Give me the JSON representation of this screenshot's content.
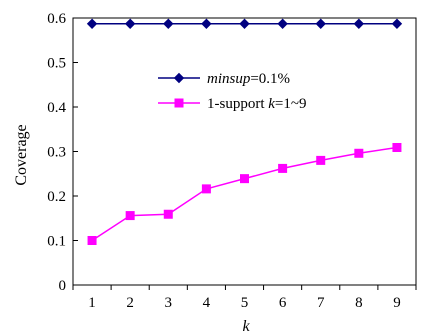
{
  "chart_data": {
    "type": "line",
    "title": "",
    "xlabel": "k",
    "ylabel": "Coverage",
    "x": [
      1,
      2,
      3,
      4,
      5,
      6,
      7,
      8,
      9
    ],
    "x_tick_labels": [
      "1",
      "2",
      "3",
      "4",
      "5",
      "6",
      "7",
      "8",
      "9"
    ],
    "xlim": [
      0.5,
      9.5
    ],
    "ylim": [
      0,
      0.6
    ],
    "y_ticks": [
      0,
      0.1,
      0.2,
      0.3,
      0.4,
      0.5,
      0.6
    ],
    "y_tick_labels": [
      "0",
      "0.1",
      "0.2",
      "0.3",
      "0.4",
      "0.5",
      "0.6"
    ],
    "grid": false,
    "legend_placement": "center",
    "series": [
      {
        "name": "minsup=0.1%",
        "legend_parts": [
          {
            "text": "minsup",
            "italic": true
          },
          {
            "text": "=0.1%",
            "italic": false
          }
        ],
        "color": "#000080",
        "marker": "diamond",
        "values": [
          0.587,
          0.587,
          0.587,
          0.587,
          0.587,
          0.587,
          0.587,
          0.587,
          0.587
        ]
      },
      {
        "name": "1-support k=1~9",
        "legend_parts": [
          {
            "text": "1-support ",
            "italic": false
          },
          {
            "text": "k",
            "italic": true
          },
          {
            "text": "=1~9",
            "italic": false
          }
        ],
        "color": "#ff00ff",
        "marker": "square",
        "values": [
          0.1,
          0.156,
          0.159,
          0.216,
          0.239,
          0.262,
          0.28,
          0.296,
          0.309
        ]
      }
    ]
  }
}
